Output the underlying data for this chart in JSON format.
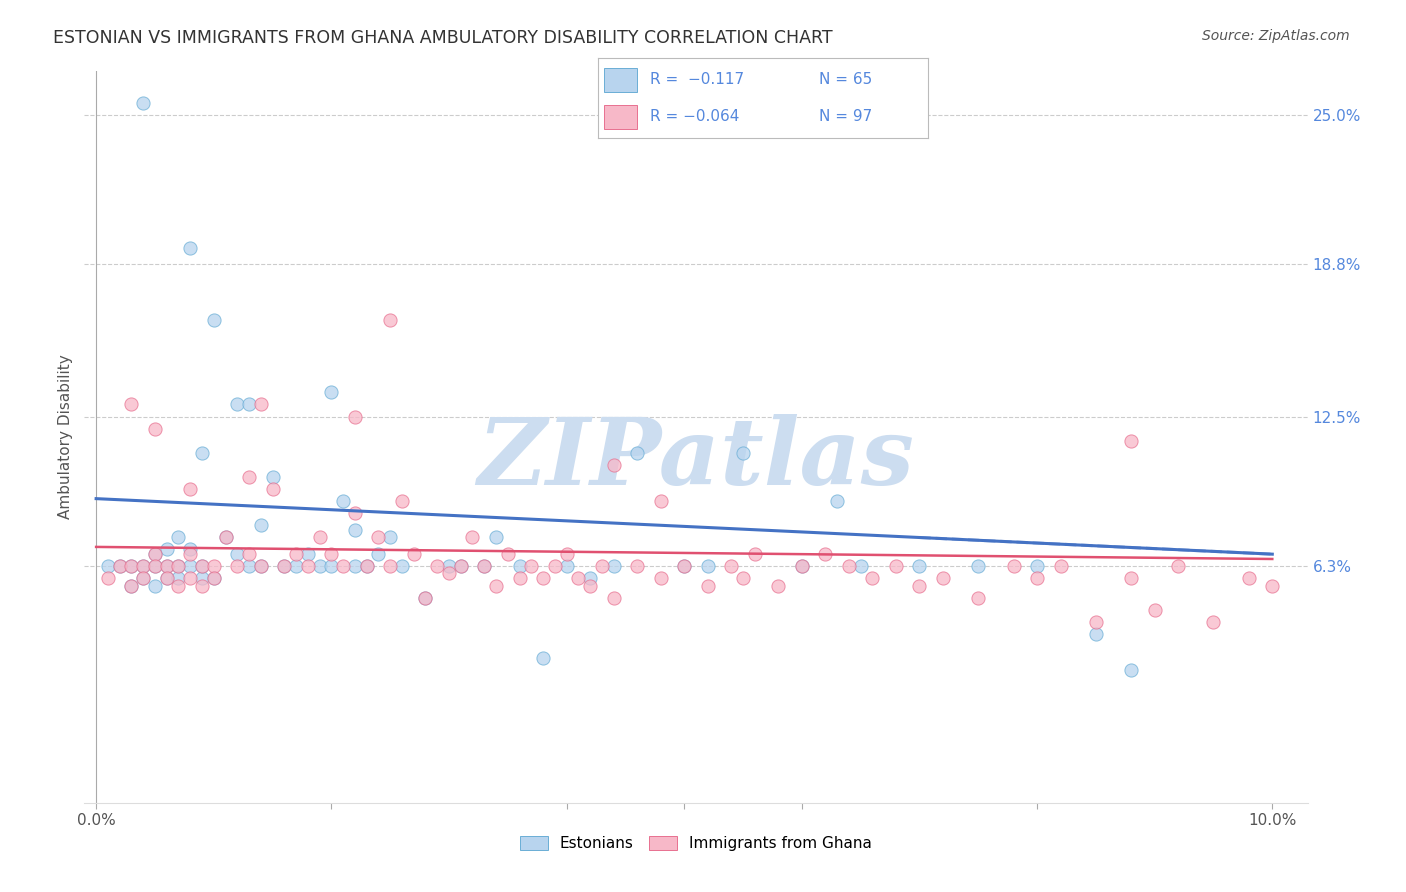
{
  "title": "ESTONIAN VS IMMIGRANTS FROM GHANA AMBULATORY DISABILITY CORRELATION CHART",
  "source": "Source: ZipAtlas.com",
  "ylabel": "Ambulatory Disability",
  "color_estonian_fill": "#b8d4ee",
  "color_estonian_edge": "#6aaed6",
  "color_ghana_fill": "#f7b8c8",
  "color_ghana_edge": "#e87090",
  "color_line_estonian": "#4472c4",
  "color_line_ghana": "#e05070",
  "color_axis_right": "#5588dd",
  "color_grid": "#cccccc",
  "background": "#ffffff",
  "watermark_color": "#ccddf0",
  "xlim_min": -0.001,
  "xlim_max": 0.103,
  "ylim_min": -0.035,
  "ylim_max": 0.268,
  "ytick_vals": [
    0.063,
    0.125,
    0.188,
    0.25
  ],
  "ytick_labels": [
    "6.3%",
    "12.5%",
    "18.8%",
    "25.0%"
  ],
  "legend_line1": "R =  −0.117   N = 65",
  "legend_line2": "R = −0.064   N = 97",
  "est_line_start_y": 0.091,
  "est_line_end_y": 0.068,
  "gha_line_start_y": 0.071,
  "gha_line_end_y": 0.066,
  "scatter_size": 90,
  "scatter_alpha": 0.75
}
